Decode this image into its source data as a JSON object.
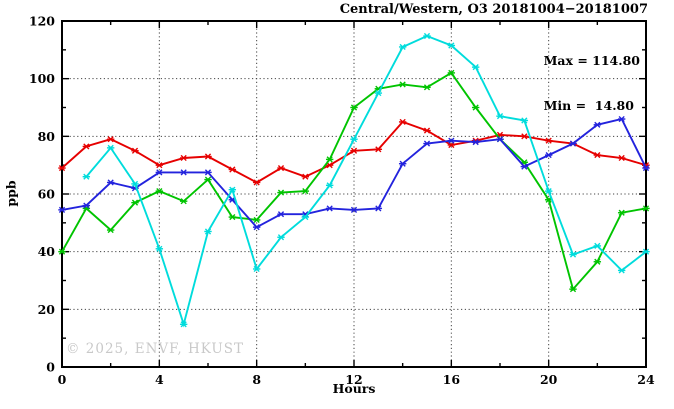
{
  "header": {
    "title": "Central/Western, O3 20181004−20181007"
  },
  "stats": {
    "max_label": "Max = 114.80",
    "min_label": "Min =  14.80"
  },
  "watermark": "© 2025, ENVF, HKUST",
  "chart_data": {
    "type": "line",
    "title": "Central/Western, O3 20181004−20181007",
    "xlabel": "Hours",
    "ylabel": "ppb",
    "xlim": [
      0,
      24
    ],
    "ylim": [
      0,
      120
    ],
    "x_major_ticks": [
      0,
      4,
      8,
      12,
      16,
      20,
      24
    ],
    "y_major_ticks": [
      0,
      20,
      40,
      60,
      80,
      100,
      120
    ],
    "x_minor_step": 2,
    "y_minor_step": 10,
    "x_gridlines": [
      4,
      8,
      12,
      16,
      20
    ],
    "y_gridlines": [
      20,
      40,
      60,
      80,
      100
    ],
    "grid": "dotted",
    "legend": "none",
    "max_value": 114.8,
    "min_value": 14.8,
    "x": [
      0,
      1,
      2,
      3,
      4,
      5,
      6,
      7,
      8,
      9,
      10,
      11,
      12,
      13,
      14,
      15,
      16,
      17,
      18,
      19,
      20,
      21,
      22,
      23,
      24
    ],
    "series": [
      {
        "name": "series-red",
        "color": "#e60000",
        "values": [
          69,
          76.5,
          79,
          75,
          70,
          72.5,
          73,
          68.5,
          64,
          69,
          66,
          70,
          75,
          75.5,
          85,
          82,
          77,
          78.5,
          80.5,
          80,
          78.5,
          77.5,
          73.5,
          72.5,
          70
        ]
      },
      {
        "name": "series-green",
        "color": "#00c400",
        "values": [
          40,
          55,
          47.5,
          57,
          61,
          57.5,
          65,
          52,
          51,
          60.5,
          61,
          72,
          90,
          96.5,
          98,
          97,
          102,
          90,
          79,
          71,
          58,
          27,
          36.5,
          53.5,
          55
        ]
      },
      {
        "name": "series-blue",
        "color": "#2323dd",
        "values": [
          54.5,
          56,
          64,
          62,
          67.5,
          67.5,
          67.5,
          58,
          48.5,
          53,
          53,
          55,
          54.5,
          55,
          70.5,
          77.5,
          78.5,
          78,
          79,
          69.5,
          73.5,
          77.5,
          84,
          86,
          69
        ]
      },
      {
        "name": "series-cyan",
        "color": "#00dcdc",
        "values": [
          null,
          66,
          76,
          63.5,
          41,
          14.8,
          47,
          61.5,
          34,
          45,
          52,
          63,
          79,
          95,
          111,
          114.8,
          111.5,
          104,
          87,
          85.5,
          61,
          39,
          42,
          33.5,
          40
        ]
      }
    ]
  }
}
